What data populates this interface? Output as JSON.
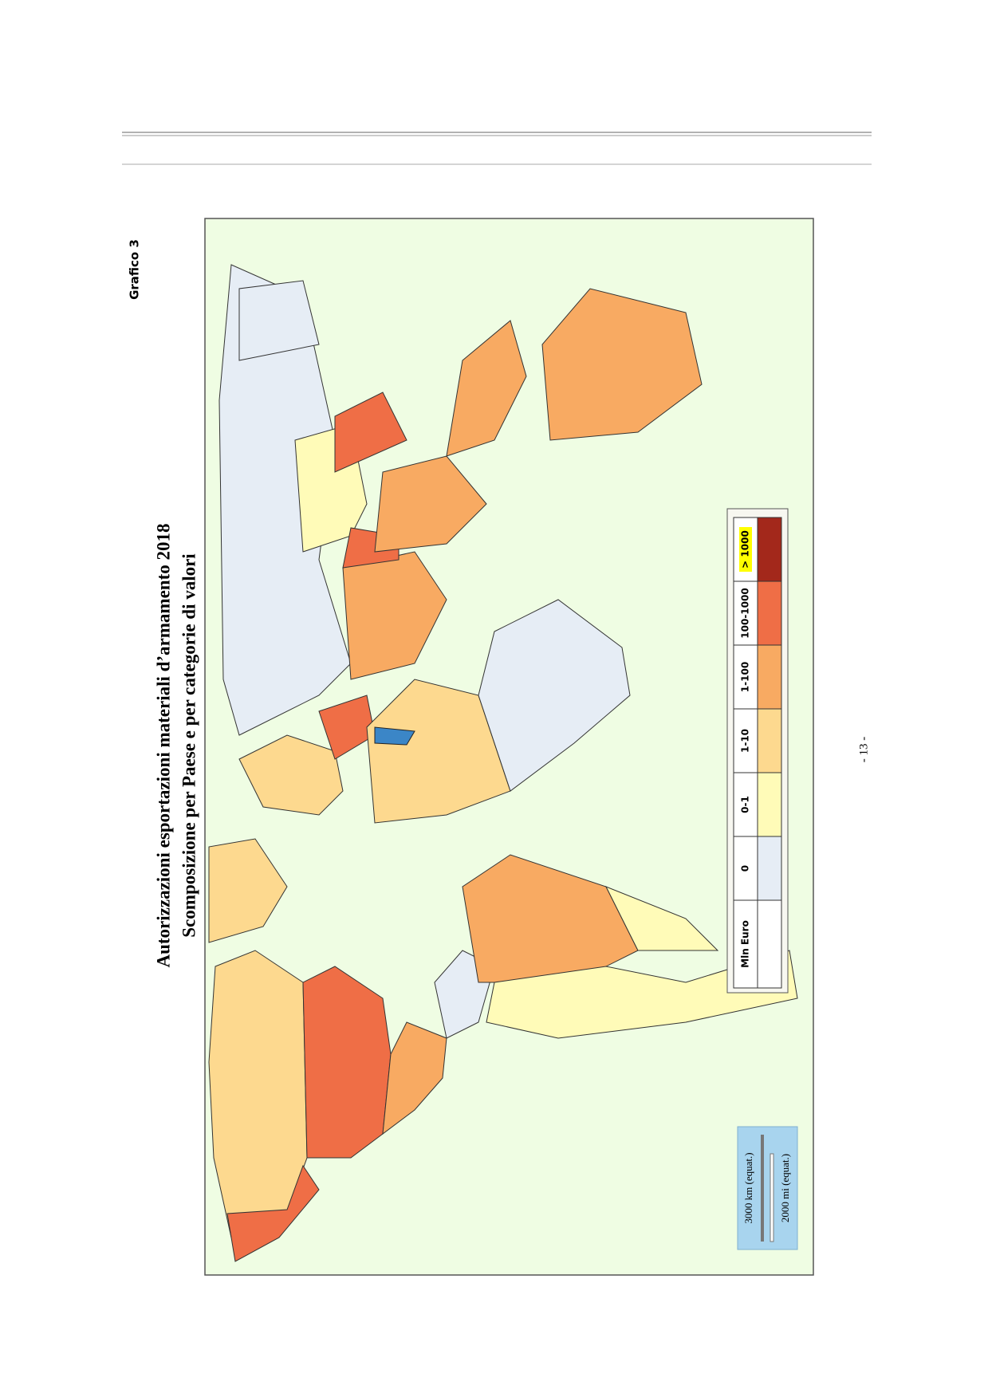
{
  "header": {
    "label": "Grafico 3"
  },
  "map": {
    "title": "Autorizzazioni esportazioni materiali d’armamento 2018",
    "subtitle": "Scomposizione per Paese e per categorie di valori",
    "legend": {
      "title": "Mln Euro",
      "items": [
        {
          "label": "0",
          "color": "#e6edf5"
        },
        {
          "label": "0-1",
          "color": "#fffbb8"
        },
        {
          "label": "1-10",
          "color": "#fdd98f"
        },
        {
          "label": "1-100",
          "color": "#f8aa62"
        },
        {
          "label": "100-1000",
          "color": "#ef6e46"
        },
        {
          "label": "> 1000",
          "color": "#a3281b"
        }
      ]
    },
    "scale": {
      "km": "3000 km (equat.)",
      "mi": "2000 mi (equat.)"
    }
  },
  "footer": {
    "page_number": "- 13 -"
  }
}
